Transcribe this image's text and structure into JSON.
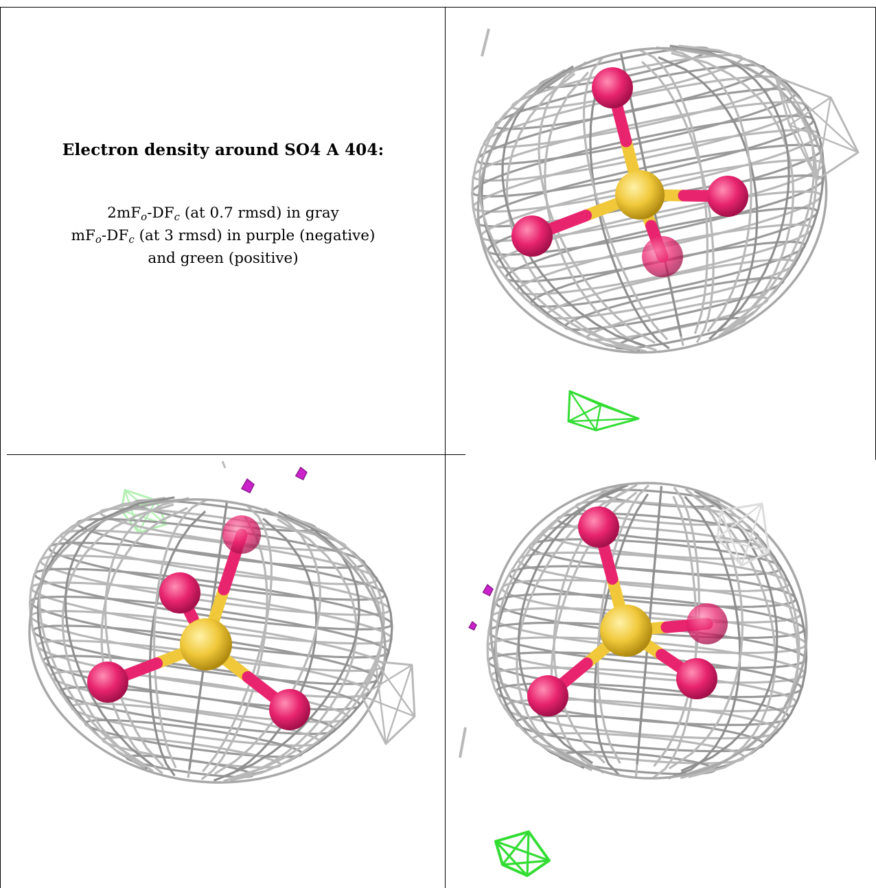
{
  "caption": {
    "title": "Electron density around SO4 A 404:",
    "line1_prefix": "2mF",
    "line1_sub1": "o",
    "line1_mid": "-DF",
    "line1_sub2": "c",
    "line1_suffix": " (at 0.7 rmsd) in gray",
    "line2_prefix": "mF",
    "line2_sub1": "o",
    "line2_mid": "-DF",
    "line2_sub2": "c",
    "line2_suffix": " (at 3 rmsd) in purple (negative)",
    "line3": "and green (positive)"
  },
  "colors": {
    "mesh_2fofc": "#b8b8b8",
    "mesh_positive": "#33dd33",
    "mesh_negative": "#cc22cc",
    "oxygen": "#e8246e",
    "sulfur": "#f0c83a"
  },
  "panels": [
    {
      "name": "view-top-right",
      "orientation": "top-right"
    },
    {
      "name": "view-bottom-left",
      "orientation": "bottom-left"
    },
    {
      "name": "view-bottom-right",
      "orientation": "bottom-right"
    }
  ]
}
